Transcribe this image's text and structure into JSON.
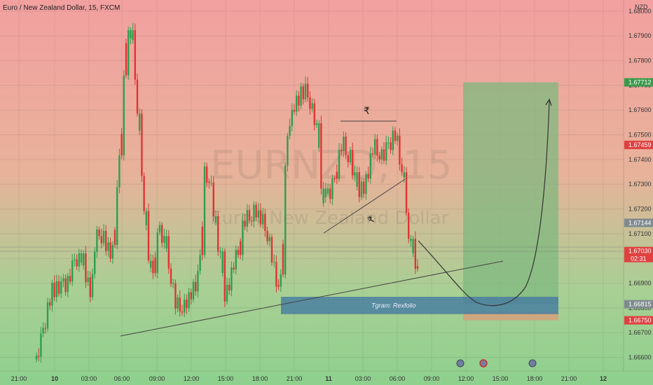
{
  "chart_title": "Euro / New Zealand Dollar, 15, FXCM",
  "currency_label": "NZD",
  "watermark": {
    "symbol": "EURNZD, 15",
    "name": "Euro / New Zealand Dollar"
  },
  "colors": {
    "bg_top": "#f0a0a0",
    "bg_bottom": "#8fd08f",
    "up": "#2e9e4f",
    "down": "#e03434",
    "target_zone": "#7fb87f",
    "support_zone": "#4a7fa0",
    "stop_zone": "#d6a07a",
    "badge_green": "#3a9a4a",
    "badge_red": "#e04040",
    "badge_gray": "#7f8a8f"
  },
  "chart_data": {
    "type": "candlestick",
    "y_axis": {
      "ticks": [
        1.666,
        1.667,
        1.668,
        1.669,
        1.67,
        1.671,
        1.672,
        1.673,
        1.674,
        1.675,
        1.676,
        1.677,
        1.678,
        1.679,
        1.68
      ],
      "ylim": [
        1.66545,
        1.68045
      ]
    },
    "x_axis": {
      "ticks": [
        "21:00",
        "10",
        "03:00",
        "06:00",
        "09:00",
        "12:00",
        "15:00",
        "18:00",
        "21:00",
        "11",
        "03:00",
        "06:00",
        "09:00",
        "12:00",
        "15:00",
        "18:00",
        "21:00",
        "12"
      ],
      "bold_ticks": [
        "10",
        "11",
        "12"
      ]
    },
    "price_labels": [
      {
        "label": "1.67712",
        "value": 1.67712,
        "style": "green"
      },
      {
        "label": "1.67459",
        "value": 1.67459,
        "style": "red"
      },
      {
        "label": "1.67144",
        "value": 1.67144,
        "style": "gray"
      },
      {
        "label": "1.67030",
        "value": 1.6703,
        "style": "red",
        "sub": "02:31"
      },
      {
        "label": "1.66815",
        "value": 1.66815,
        "style": "gray"
      },
      {
        "label": "1.66750",
        "value": 1.6675,
        "style": "red"
      }
    ],
    "support_zone": {
      "label": "Tgram: Rexfolio",
      "top": 1.66845,
      "bottom": 1.66775
    },
    "target_zone": {
      "top": 1.67712,
      "bottom": 1.66815
    },
    "stop_zone": {
      "top": 1.66785,
      "bottom": 1.6675
    },
    "pattern_labels": [
      "₹",
      "₹"
    ],
    "candles_up": [
      true,
      false,
      true,
      true,
      false,
      true,
      false,
      true,
      false,
      true,
      false,
      true,
      true,
      false,
      true,
      false,
      true,
      true,
      false,
      true,
      true,
      true,
      false,
      true,
      false,
      true,
      true,
      true,
      false,
      false,
      true,
      false,
      true,
      false,
      true,
      false,
      true,
      true,
      false,
      true,
      false,
      true,
      true,
      true,
      false,
      false,
      true,
      false,
      false,
      true,
      false,
      true,
      false,
      false,
      true,
      true,
      false,
      true,
      true,
      false,
      false,
      true,
      false,
      true,
      false,
      false,
      true,
      false,
      true,
      false,
      true,
      false,
      true,
      true,
      false,
      true,
      false,
      false,
      true,
      false,
      true,
      false,
      true,
      true,
      false,
      true,
      false,
      true,
      false,
      true,
      false,
      false,
      true,
      false,
      true,
      false,
      false,
      true,
      false,
      true,
      false,
      true,
      false,
      false,
      true,
      false,
      true,
      false,
      false,
      true,
      false,
      true,
      true,
      true,
      true,
      false,
      true,
      false,
      true,
      false,
      true,
      false,
      false,
      true,
      false,
      true,
      true,
      false,
      true,
      true,
      true,
      false,
      true,
      false,
      false,
      true,
      false,
      true,
      false,
      false,
      true,
      false,
      true,
      true,
      false,
      true,
      false,
      true,
      false,
      true,
      false,
      true,
      false,
      false,
      true,
      false,
      true,
      true,
      false,
      true,
      false,
      true,
      false,
      false,
      true,
      false,
      false,
      true,
      true,
      false,
      false,
      true,
      false
    ]
  }
}
